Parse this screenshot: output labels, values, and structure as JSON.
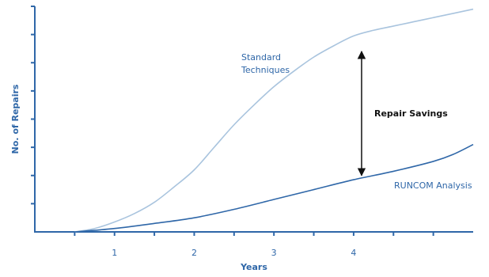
{
  "chart_data": {
    "type": "line",
    "title": "",
    "xlabel": "Years",
    "ylabel": "No. of Repairs",
    "xlim": [
      0,
      5.5
    ],
    "ylim": [
      0,
      8
    ],
    "x_ticks": [
      0.5,
      1,
      1.5,
      2,
      2.5,
      3,
      3.5,
      4,
      4.5,
      5
    ],
    "x_tick_labels": [
      {
        "x": 1,
        "label": "1"
      },
      {
        "x": 2,
        "label": "2"
      },
      {
        "x": 3,
        "label": "3"
      },
      {
        "x": 4,
        "label": "4"
      }
    ],
    "y_ticks": [
      1,
      2,
      3,
      4,
      5,
      6,
      7,
      8
    ],
    "grid": false,
    "series": [
      {
        "name": "Standard Techniques",
        "color": "#a9c4de",
        "points": [
          [
            0.5,
            0.0
          ],
          [
            0.75,
            0.12
          ],
          [
            1.0,
            0.35
          ],
          [
            1.25,
            0.65
          ],
          [
            1.5,
            1.05
          ],
          [
            1.75,
            1.6
          ],
          [
            2.0,
            2.2
          ],
          [
            2.25,
            3.0
          ],
          [
            2.5,
            3.8
          ],
          [
            2.75,
            4.5
          ],
          [
            3.0,
            5.15
          ],
          [
            3.25,
            5.7
          ],
          [
            3.5,
            6.2
          ],
          [
            3.75,
            6.6
          ],
          [
            4.0,
            6.95
          ],
          [
            4.25,
            7.15
          ],
          [
            4.5,
            7.3
          ],
          [
            4.75,
            7.45
          ],
          [
            5.0,
            7.6
          ],
          [
            5.25,
            7.75
          ],
          [
            5.5,
            7.9
          ]
        ]
      },
      {
        "name": "RUNCOM Analysis",
        "color": "#2f67a8",
        "points": [
          [
            0.5,
            0.0
          ],
          [
            1.0,
            0.12
          ],
          [
            1.5,
            0.3
          ],
          [
            2.0,
            0.5
          ],
          [
            2.5,
            0.8
          ],
          [
            3.0,
            1.15
          ],
          [
            3.5,
            1.5
          ],
          [
            4.0,
            1.85
          ],
          [
            4.5,
            2.15
          ],
          [
            5.0,
            2.5
          ],
          [
            5.25,
            2.75
          ],
          [
            5.5,
            3.1
          ]
        ]
      }
    ],
    "annotations": [
      {
        "text": "Repair Savings",
        "type": "double-arrow",
        "x": 4.1,
        "from_y": 6.4,
        "to_y": 2.0
      }
    ],
    "colors": {
      "axis": "#2f67a8",
      "arrow": "#111111",
      "annotation_text": "#111111"
    }
  }
}
